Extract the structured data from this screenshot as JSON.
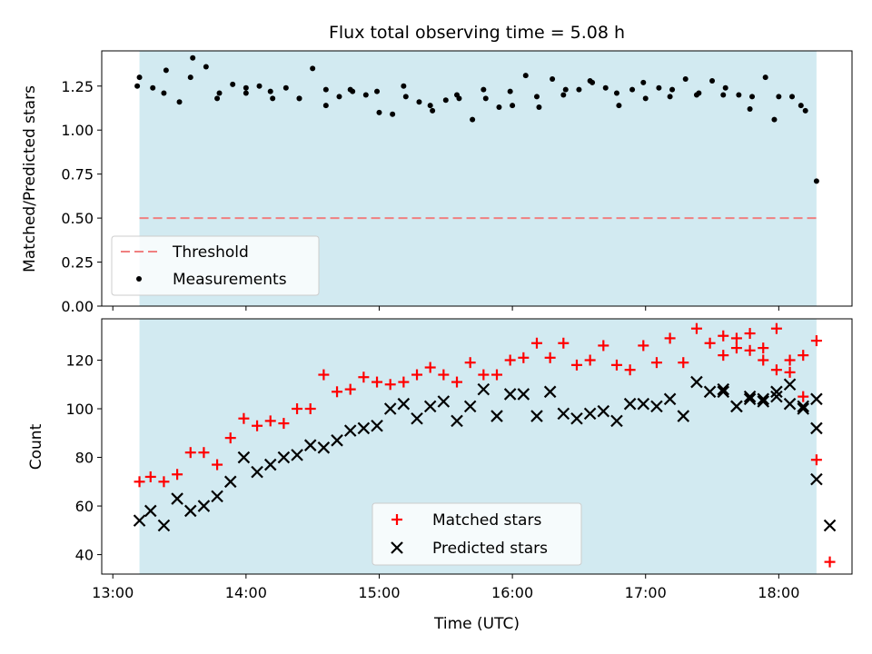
{
  "chart_data": [
    {
      "type": "scatter",
      "title": "Flux total observing time = 5.08 h",
      "ylabel": "Matched/Predicted stars",
      "xlim": [
        "12:55",
        "18:33"
      ],
      "ylim": [
        0,
        1.45
      ],
      "yticks": [
        0.0,
        0.25,
        0.5,
        0.75,
        1.0,
        1.25
      ],
      "ytick_labels": [
        "0.00",
        "0.25",
        "0.50",
        "0.75",
        "1.00",
        "1.25"
      ],
      "shaded_span": [
        "13:12",
        "18:17"
      ],
      "legend_position": "lower-left",
      "threshold": {
        "name": "Threshold",
        "y": 0.5,
        "color": "#f08080",
        "style": "dashed"
      },
      "series": [
        {
          "name": "Measurements",
          "color": "#000000",
          "x": [
            "13:12",
            "13:18",
            "13:24",
            "13:30",
            "13:36",
            "13:42",
            "13:48",
            "13:54",
            "14:00",
            "14:06",
            "14:12",
            "14:18",
            "14:24",
            "14:30",
            "14:36",
            "14:42",
            "14:48",
            "14:54",
            "15:00",
            "15:06",
            "15:12",
            "15:18",
            "15:24",
            "15:30",
            "15:36",
            "15:42",
            "15:48",
            "15:54",
            "16:00",
            "16:06",
            "16:12",
            "16:18",
            "16:24",
            "16:30",
            "16:36",
            "16:42",
            "16:48",
            "16:54",
            "17:00",
            "17:06",
            "17:12",
            "17:18",
            "17:24",
            "17:30",
            "17:36",
            "17:42",
            "17:48",
            "17:54",
            "18:00",
            "18:06",
            "18:12",
            "18:17",
            "13:11",
            "13:23",
            "13:35",
            "13:47",
            "14:00",
            "14:11",
            "14:24",
            "14:36",
            "14:47",
            "14:59",
            "15:11",
            "15:23",
            "15:35",
            "15:47",
            "15:59",
            "16:11",
            "16:23",
            "16:35",
            "16:47",
            "16:59",
            "17:11",
            "17:23",
            "17:35",
            "17:47",
            "17:58",
            "18:10"
          ],
          "y": [
            1.3,
            1.24,
            1.34,
            1.16,
            1.41,
            1.36,
            1.21,
            1.26,
            1.21,
            1.25,
            1.18,
            1.24,
            1.18,
            1.35,
            1.23,
            1.19,
            1.22,
            1.2,
            1.1,
            1.09,
            1.19,
            1.16,
            1.11,
            1.17,
            1.18,
            1.06,
            1.18,
            1.13,
            1.14,
            1.31,
            1.13,
            1.29,
            1.23,
            1.23,
            1.27,
            1.24,
            1.14,
            1.23,
            1.18,
            1.24,
            1.23,
            1.29,
            1.21,
            1.28,
            1.24,
            1.2,
            1.19,
            1.3,
            1.19,
            1.19,
            1.11,
            0.71,
            1.25,
            1.21,
            1.3,
            1.18,
            1.24,
            1.22,
            1.18,
            1.14,
            1.23,
            1.22,
            1.25,
            1.14,
            1.2,
            1.23,
            1.22,
            1.19,
            1.2,
            1.28,
            1.21,
            1.27,
            1.19,
            1.2,
            1.2,
            1.12,
            1.06,
            1.14
          ]
        }
      ]
    },
    {
      "type": "scatter",
      "xlabel": "Time (UTC)",
      "ylabel": "Count",
      "xlim": [
        "12:55",
        "18:33"
      ],
      "ylim": [
        32,
        137
      ],
      "yticks": [
        40,
        60,
        80,
        100,
        120
      ],
      "xticks": [
        "13:00",
        "14:00",
        "15:00",
        "16:00",
        "17:00",
        "18:00"
      ],
      "shaded_span": [
        "13:12",
        "18:17"
      ],
      "legend_position": "lower-center",
      "series": [
        {
          "name": "Matched stars",
          "marker": "plus",
          "color": "#ff0000",
          "x": [
            "13:12",
            "13:17",
            "13:23",
            "13:29",
            "13:35",
            "13:41",
            "13:47",
            "13:53",
            "13:59",
            "14:05",
            "14:11",
            "14:17",
            "14:23",
            "14:29",
            "14:35",
            "14:41",
            "14:47",
            "14:53",
            "14:59",
            "15:05",
            "15:11",
            "15:17",
            "15:23",
            "15:29",
            "15:35",
            "15:41",
            "15:47",
            "15:53",
            "15:59",
            "16:05",
            "16:11",
            "16:17",
            "16:23",
            "16:29",
            "16:35",
            "16:41",
            "16:47",
            "16:53",
            "16:59",
            "17:05",
            "17:11",
            "17:17",
            "17:23",
            "17:29",
            "17:35",
            "17:41",
            "17:47",
            "17:53",
            "17:59",
            "18:05",
            "18:11",
            "18:17"
          ],
          "y": [
            70,
            72,
            70,
            73,
            82,
            82,
            77,
            88,
            96,
            93,
            95,
            94,
            100,
            100,
            114,
            107,
            108,
            113,
            111,
            110,
            111,
            114,
            117,
            114,
            111,
            119,
            114,
            114,
            120,
            121,
            127,
            121,
            127,
            118,
            120,
            126,
            118,
            116,
            126,
            119,
            129,
            119,
            133,
            127,
            130,
            129,
            124,
            125,
            133,
            120,
            122,
            128
          ]
        },
        {
          "name": "Predicted stars",
          "marker": "x",
          "color": "#000000",
          "x": [
            "13:12",
            "13:17",
            "13:23",
            "13:29",
            "13:35",
            "13:41",
            "13:47",
            "13:53",
            "13:59",
            "14:05",
            "14:11",
            "14:17",
            "14:23",
            "14:29",
            "14:35",
            "14:41",
            "14:47",
            "14:53",
            "14:59",
            "15:05",
            "15:11",
            "15:17",
            "15:23",
            "15:29",
            "15:35",
            "15:41",
            "15:47",
            "15:53",
            "15:59",
            "16:05",
            "16:11",
            "16:17",
            "16:23",
            "16:29",
            "16:35",
            "16:41",
            "16:47",
            "16:53",
            "16:59",
            "17:05",
            "17:11",
            "17:17",
            "17:23",
            "17:29",
            "17:35",
            "17:41",
            "17:47",
            "17:53",
            "17:59",
            "18:05",
            "18:11",
            "18:17"
          ],
          "y": [
            54,
            58,
            52,
            63,
            58,
            60,
            64,
            70,
            80,
            74,
            77,
            80,
            81,
            85,
            84,
            87,
            91,
            92,
            93,
            100,
            102,
            96,
            101,
            103,
            95,
            101,
            108,
            97,
            106,
            106,
            97,
            107,
            98,
            96,
            98,
            99,
            95,
            102,
            102,
            101,
            104,
            97,
            111,
            107,
            107,
            101,
            105,
            104,
            105,
            102,
            101,
            104
          ]
        }
      ],
      "tail": {
        "matched": {
          "x": [
            "17:35",
            "17:41",
            "17:47",
            "17:53",
            "17:59",
            "18:05",
            "18:11",
            "18:17"
          ],
          "y": [
            122,
            125,
            131,
            120,
            116,
            115,
            105,
            79
          ]
        },
        "predicted": {
          "x": [
            "17:35",
            "17:41",
            "17:47",
            "17:53",
            "17:59",
            "18:05",
            "18:11",
            "18:17"
          ],
          "y": [
            108,
            101,
            104,
            103,
            107,
            110,
            100,
            92
          ]
        },
        "extra_matched": {
          "x": [
            "18:23"
          ],
          "y": [
            37
          ]
        },
        "extra_predicted": {
          "x": [
            "18:17",
            "18:23"
          ],
          "y": [
            71,
            52
          ]
        }
      }
    }
  ]
}
